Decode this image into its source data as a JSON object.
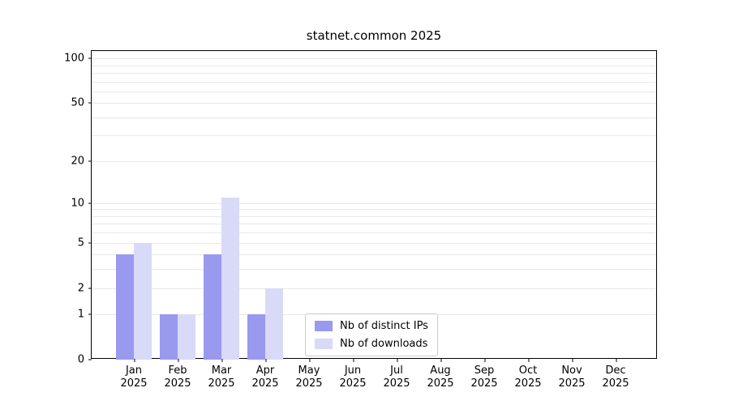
{
  "chart_data": {
    "type": "bar",
    "title": "statnet.common 2025",
    "categories": [
      "Jan",
      "Feb",
      "Mar",
      "Apr",
      "May",
      "Jun",
      "Jul",
      "Aug",
      "Sep",
      "Oct",
      "Nov",
      "Dec"
    ],
    "year_label": "2025",
    "series": [
      {
        "name": "Nb of distinct IPs",
        "color": "#9999ee",
        "values": [
          4,
          1,
          4,
          1,
          0,
          0,
          0,
          0,
          0,
          0,
          0,
          0
        ]
      },
      {
        "name": "Nb of downloads",
        "color": "#d9d9f8",
        "values": [
          5,
          1,
          11,
          2,
          0,
          0,
          0,
          0,
          0,
          0,
          0,
          0
        ]
      }
    ],
    "xlabel": "",
    "ylabel": "",
    "yscale": "log1p",
    "yticks": [
      0,
      1,
      2,
      5,
      10,
      20,
      50,
      100
    ],
    "grid_values": [
      1,
      2,
      3,
      4,
      5,
      6,
      7,
      8,
      9,
      10,
      20,
      30,
      40,
      50,
      60,
      70,
      80,
      90,
      100
    ],
    "ylim": [
      0,
      112
    ],
    "grid": true,
    "legend_position": "lower center inside"
  },
  "colors": {
    "background": "#ffffff",
    "grid": "#e8e8e8",
    "spine": "#000000",
    "legend_border": "#cccccc"
  }
}
